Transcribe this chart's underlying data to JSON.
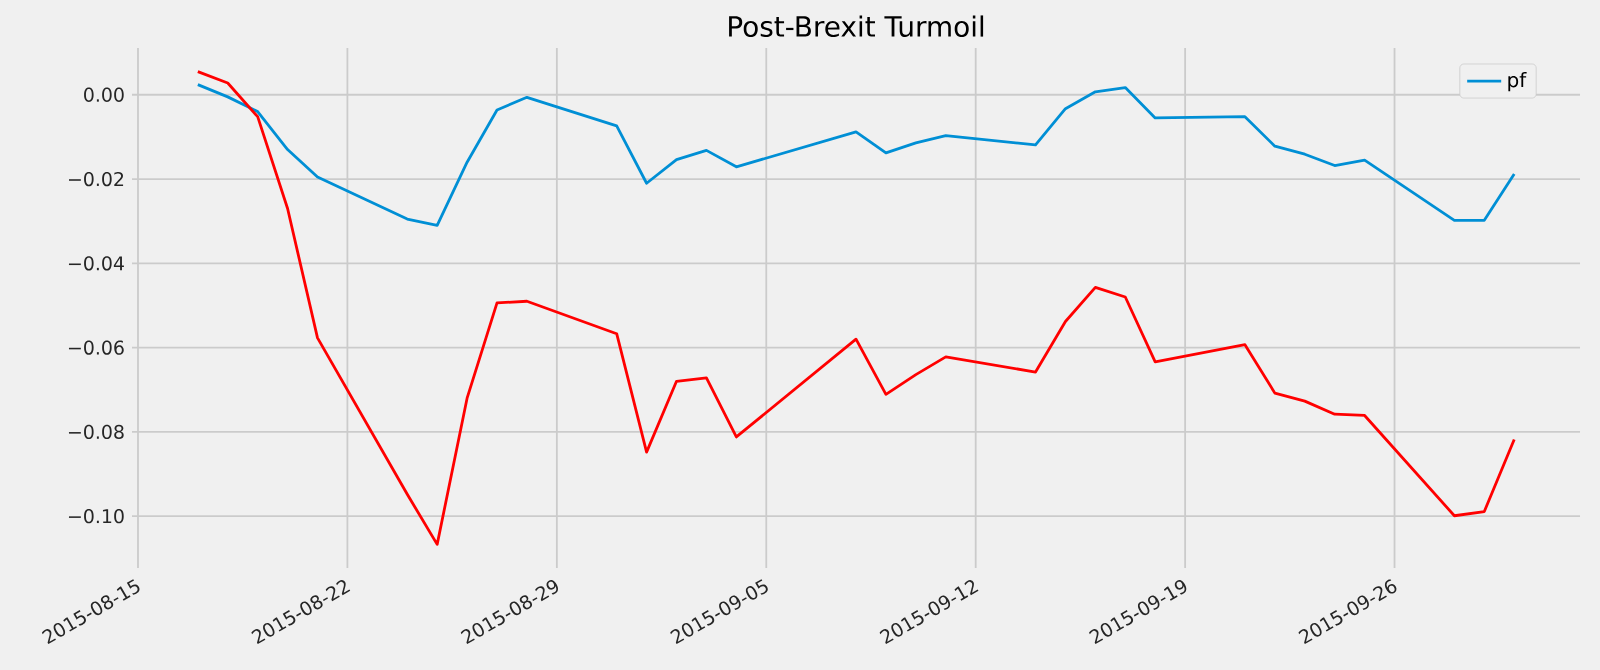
{
  "chart_data": {
    "type": "line",
    "title": "Post-Brexit Turmoil",
    "x": [
      "2015-08-17",
      "2015-08-18",
      "2015-08-19",
      "2015-08-20",
      "2015-08-21",
      "2015-08-24",
      "2015-08-25",
      "2015-08-26",
      "2015-08-27",
      "2015-08-28",
      "2015-08-31",
      "2015-09-01",
      "2015-09-02",
      "2015-09-03",
      "2015-09-04",
      "2015-09-08",
      "2015-09-09",
      "2015-09-10",
      "2015-09-11",
      "2015-09-14",
      "2015-09-15",
      "2015-09-16",
      "2015-09-17",
      "2015-09-18",
      "2015-09-21",
      "2015-09-22",
      "2015-09-23",
      "2015-09-24",
      "2015-09-25",
      "2015-09-28",
      "2015-09-29",
      "2015-09-30"
    ],
    "series": [
      {
        "name": "pf",
        "color": "#008fd5",
        "values": [
          0.0024,
          -0.0005,
          -0.004,
          -0.013,
          -0.0195,
          -0.0295,
          -0.031,
          -0.016,
          -0.0036,
          -0.0006,
          -0.0074,
          -0.021,
          -0.0154,
          -0.0132,
          -0.0171,
          -0.0088,
          -0.0138,
          -0.0114,
          -0.0097,
          -0.0119,
          -0.0033,
          0.0007,
          0.0017,
          -0.0055,
          -0.0052,
          -0.0122,
          -0.0141,
          -0.0168,
          -0.0155,
          -0.0298,
          -0.0298,
          -0.0188
        ]
      },
      {
        "color": "#ff0000",
        "values": [
          0.0055,
          0.0028,
          -0.0052,
          -0.027,
          -0.0577,
          -0.0948,
          -0.1067,
          -0.072,
          -0.0494,
          -0.049,
          -0.0567,
          -0.0848,
          -0.068,
          -0.0672,
          -0.0812,
          -0.058,
          -0.0711,
          -0.0664,
          -0.0622,
          -0.0658,
          -0.0538,
          -0.0457,
          -0.048,
          -0.0634,
          -0.0593,
          -0.0708,
          -0.0727,
          -0.0758,
          -0.0761,
          -0.0999,
          -0.0989,
          -0.0818
        ]
      }
    ],
    "xlim": [
      "2015-08-14T19:12",
      "2015-10-02T04:48"
    ],
    "xticks": [
      {
        "value": "2015-08-15",
        "label": "2015-08-15"
      },
      {
        "value": "2015-08-22",
        "label": "2015-08-22"
      },
      {
        "value": "2015-08-29",
        "label": "2015-08-29"
      },
      {
        "value": "2015-09-05",
        "label": "2015-09-05"
      },
      {
        "value": "2015-09-12",
        "label": "2015-09-12"
      },
      {
        "value": "2015-09-19",
        "label": "2015-09-19"
      },
      {
        "value": "2015-09-26",
        "label": "2015-09-26"
      }
    ],
    "ylim": [
      -0.1123,
      0.0111
    ],
    "yticks": [
      {
        "value": -0.1,
        "label": "−0.10"
      },
      {
        "value": -0.08,
        "label": "−0.08"
      },
      {
        "value": -0.06,
        "label": "−0.06"
      },
      {
        "value": -0.04,
        "label": "−0.04"
      },
      {
        "value": -0.02,
        "label": "−0.02"
      },
      {
        "value": 0,
        "label": "0.00"
      }
    ],
    "grid": true,
    "legend": "top right",
    "marker": "none",
    "line_style": "solid"
  }
}
